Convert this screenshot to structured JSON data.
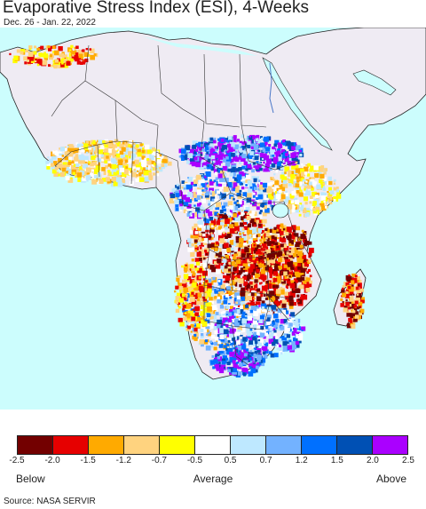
{
  "title": "Evaporative Stress Index (ESI), 4-Weeks",
  "subtitle": "Dec. 26 - Jan. 22, 2022",
  "map": {
    "region": "Africa",
    "ocean_color": "#ccfdfd",
    "no_data_land_color": "#efebf3",
    "border_color": "#222222"
  },
  "legend": {
    "colors": [
      "#730000",
      "#e60000",
      "#ffaa00",
      "#ffd37f",
      "#ffff00",
      "#ffffff",
      "#bee8ff",
      "#73b2ff",
      "#0070ff",
      "#0050b4",
      "#aa00ff"
    ],
    "ticks": [
      "-2.5",
      "-2.0",
      "-1.5",
      "-1.2",
      "-0.7",
      "-0.5",
      "0.5",
      "0.7",
      "1.2",
      "1.5",
      "2.0",
      "2.5"
    ],
    "low_label": "Below",
    "mid_label": "Average",
    "high_label": "Above"
  },
  "source": "Source: NASA SERVIR"
}
